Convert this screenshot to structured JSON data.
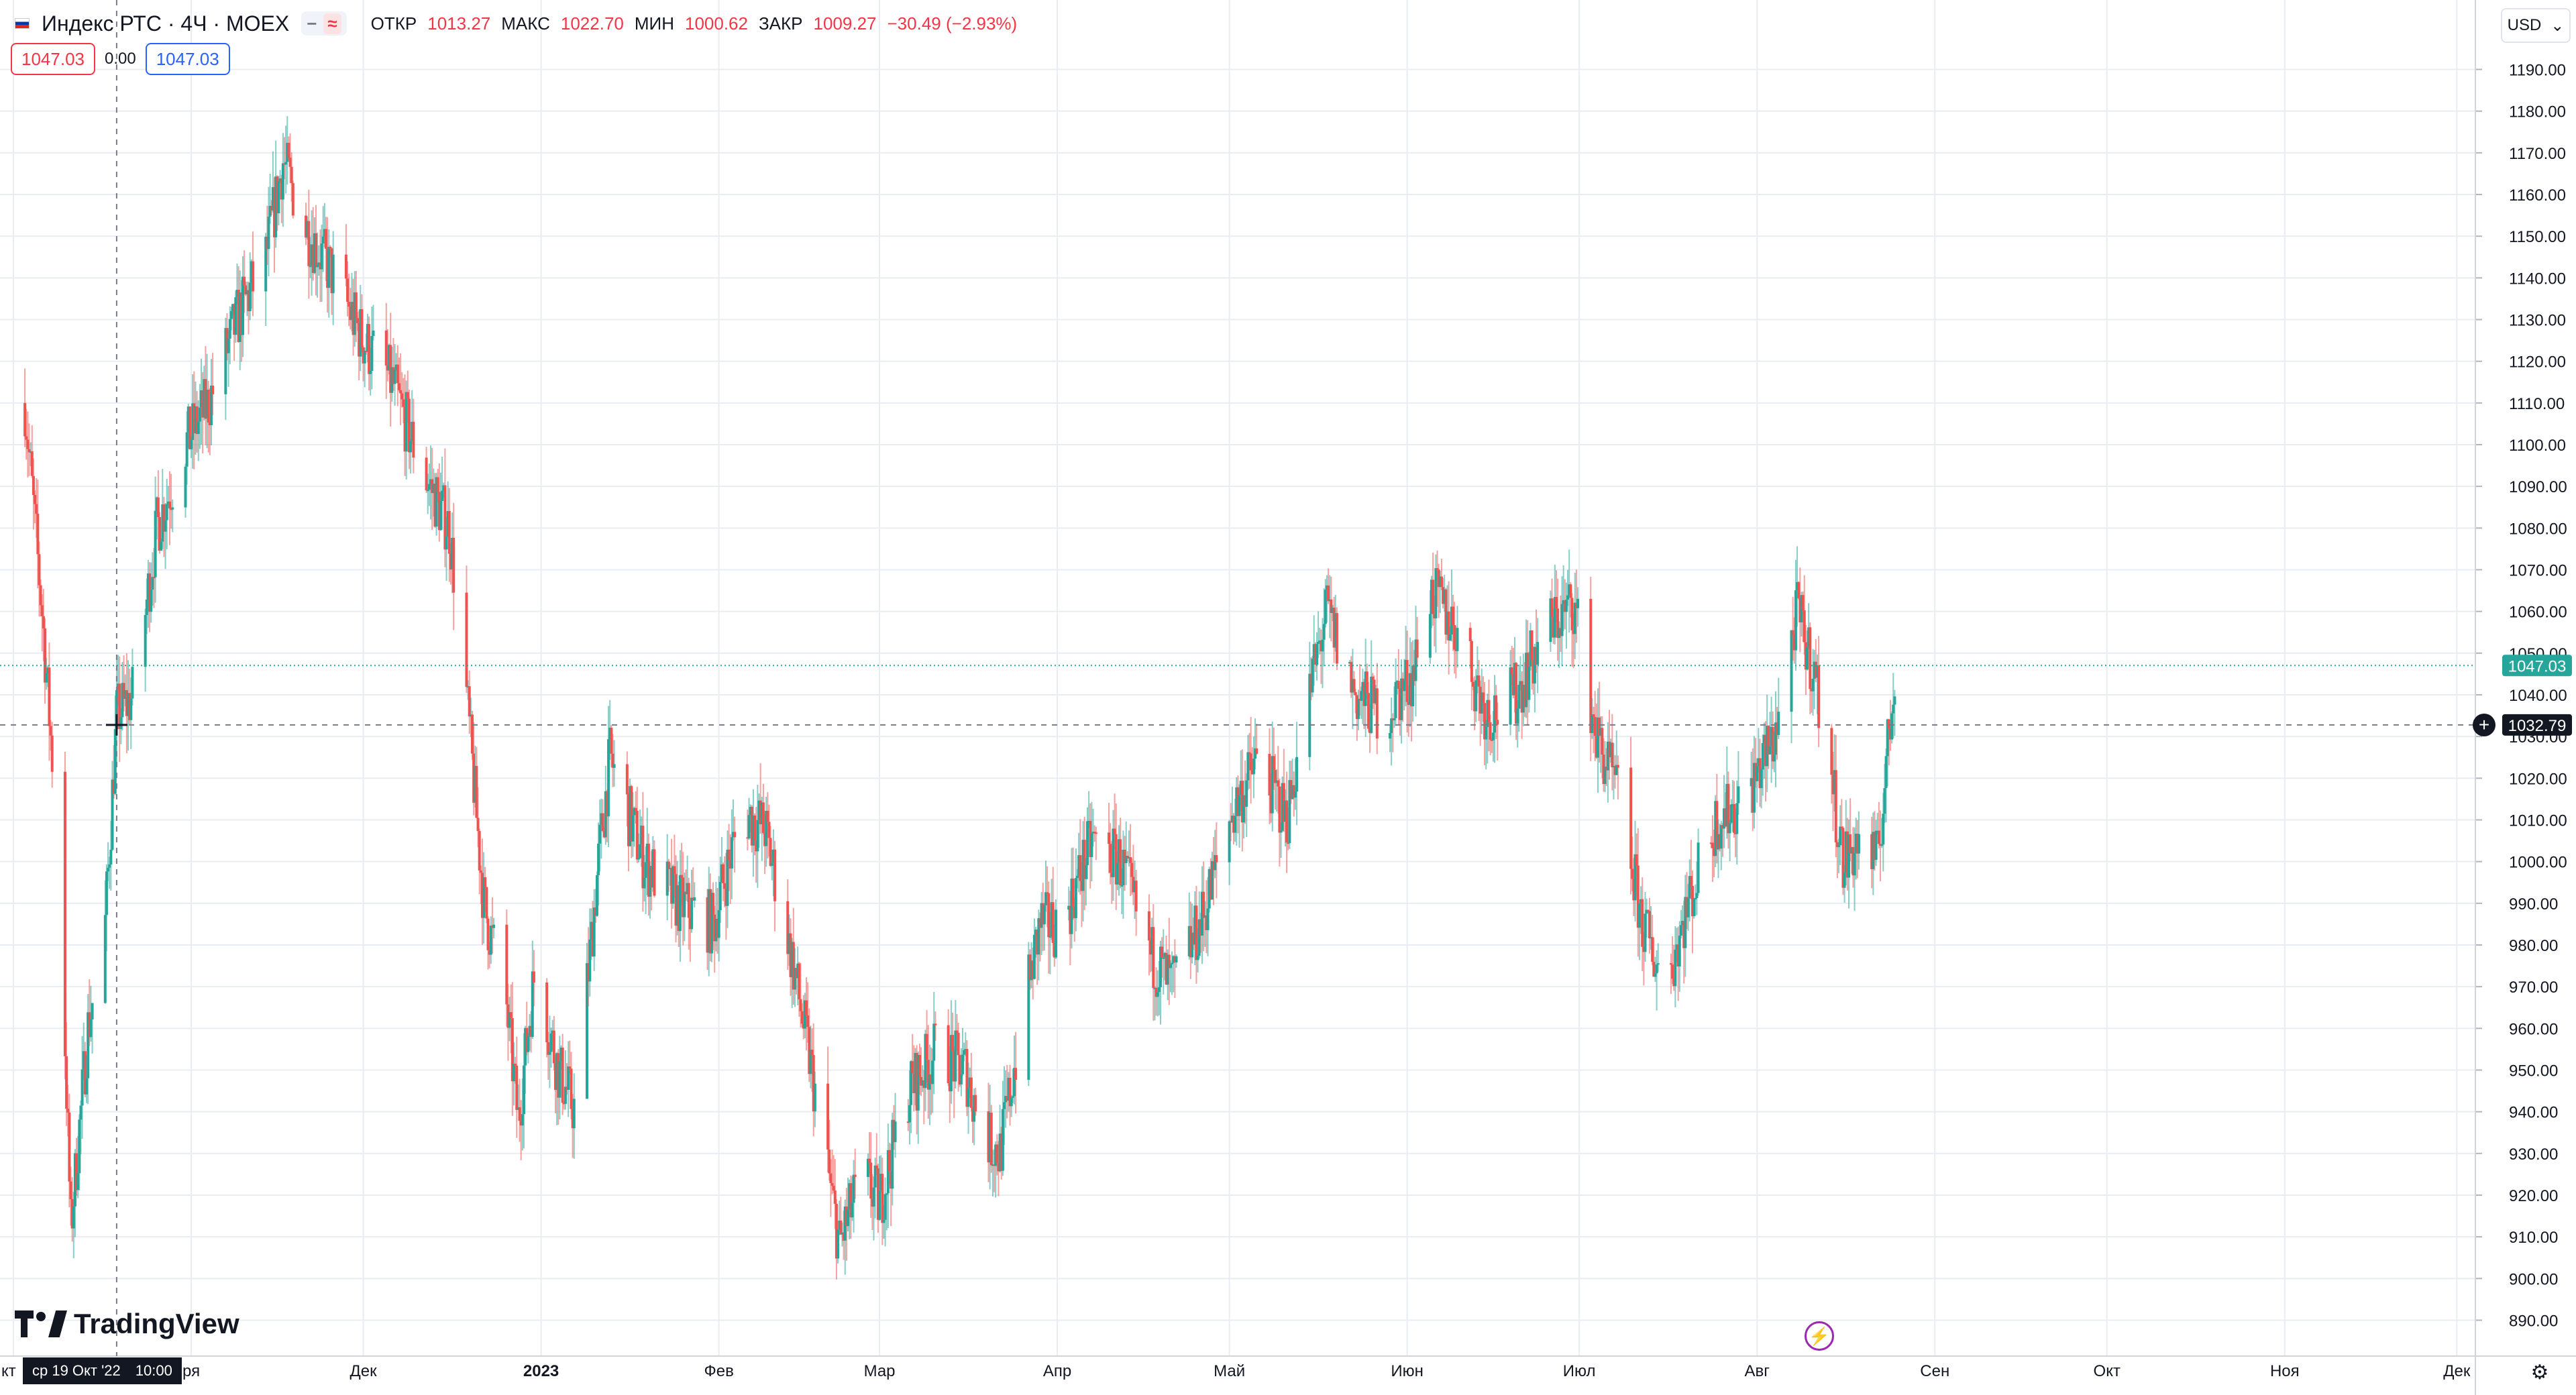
{
  "header": {
    "symbol_title": "Индекс РТС · 4Ч · MOEX",
    "chip_minus": "−",
    "chip_approx": "≈",
    "ohlc": {
      "open_label": "ОТКР",
      "open": "1013.27",
      "high_label": "МАКС",
      "high": "1022.70",
      "low_label": "МИН",
      "low": "1000.62",
      "close_label": "ЗАКР",
      "close": "1009.27",
      "change": "−30.49 (−2.93%)"
    }
  },
  "quote": {
    "sell": "1047.03",
    "spread": "0.00",
    "buy": "1047.03"
  },
  "currency": {
    "label": "USD",
    "chevron": "⌄"
  },
  "logo_text": "TradingView",
  "crosshair": {
    "time_label": "ср 19 Окт '22",
    "time_value": "10:00",
    "price_label": "1032.79"
  },
  "last_price_label": "1047.03",
  "colors": {
    "up": "#26a69a",
    "down": "#ef5350",
    "grid": "#e9edf3",
    "text": "#131722",
    "accent": "#2962ff",
    "last_line": "#26a69a"
  },
  "icons": {
    "settings": "gear-icon",
    "bolt": "lightning-icon",
    "plus": "plus-circle-icon",
    "flag": "russia-flag-icon"
  },
  "chart_data": {
    "type": "candlestick",
    "title": "Индекс РТС · 4Ч · MOEX",
    "ylim": [
      883,
      1197
    ],
    "y_ticks": [
      890,
      900,
      910,
      920,
      930,
      940,
      950,
      960,
      970,
      980,
      990,
      1000,
      1010,
      1020,
      1030,
      1040,
      1050,
      1060,
      1070,
      1080,
      1090,
      1100,
      1110,
      1120,
      1130,
      1140,
      1150,
      1160,
      1170,
      1180,
      1190
    ],
    "y_tick_labels": [
      "890.00",
      "900.00",
      "910.00",
      "920.00",
      "930.00",
      "940.00",
      "950.00",
      "960.00",
      "970.00",
      "980.00",
      "990.00",
      "1000.00",
      "1010.00",
      "1020.00",
      "1030.00",
      "1040.00",
      "1050.00",
      "1060.00",
      "1070.00",
      "1080.00",
      "1090.00",
      "1100.00",
      "1110.00",
      "1120.00",
      "1130.00",
      "1140.00",
      "1150.00",
      "1160.00",
      "1170.00",
      "1180.00",
      "1190.00"
    ],
    "x_labels": [
      "кт",
      "ря",
      "Дек",
      "2023",
      "Фев",
      "Мар",
      "Апр",
      "Май",
      "Июн",
      "Июл",
      "Авг",
      "Сен",
      "Окт",
      "Ноя",
      "Дек"
    ],
    "x_label_dates": [
      "2022-10-01",
      "2022-11-01",
      "2022-12-01",
      "2023-01-01",
      "2023-02-01",
      "2023-03-01",
      "2023-04-01",
      "2023-05-01",
      "2023-06-01",
      "2023-07-01",
      "2023-08-01",
      "2023-09-01",
      "2023-10-01",
      "2023-11-01",
      "2023-12-01"
    ],
    "last_price": 1047.03,
    "crosshair_price": 1032.79,
    "crosshair_date": "2022-10-19",
    "grid": true,
    "anchors": [
      [
        "2022-10-03",
        1110
      ],
      [
        "2022-10-06",
        1060
      ],
      [
        "2022-10-09",
        1000
      ],
      [
        "2022-10-11",
        912
      ],
      [
        "2022-10-14",
        960
      ],
      [
        "2022-10-17",
        985
      ],
      [
        "2022-10-19",
        1035
      ],
      [
        "2022-10-22",
        1040
      ],
      [
        "2022-10-26",
        1080
      ],
      [
        "2022-10-31",
        1100
      ],
      [
        "2022-11-04",
        1110
      ],
      [
        "2022-11-09",
        1130
      ],
      [
        "2022-11-14",
        1145
      ],
      [
        "2022-11-17",
        1168
      ],
      [
        "2022-11-21",
        1152
      ],
      [
        "2022-11-26",
        1140
      ],
      [
        "2022-12-01",
        1125
      ],
      [
        "2022-12-06",
        1115
      ],
      [
        "2022-12-11",
        1095
      ],
      [
        "2022-12-16",
        1080
      ],
      [
        "2022-12-19",
        1040
      ],
      [
        "2022-12-22",
        990
      ],
      [
        "2022-12-26",
        965
      ],
      [
        "2022-12-28",
        938
      ],
      [
        "2022-12-31",
        975
      ],
      [
        "2023-01-04",
        950
      ],
      [
        "2023-01-07",
        940
      ],
      [
        "2023-01-11",
        1000
      ],
      [
        "2023-01-13",
        1025
      ],
      [
        "2023-01-19",
        1000
      ],
      [
        "2023-01-25",
        990
      ],
      [
        "2023-01-31",
        985
      ],
      [
        "2023-02-05",
        1012
      ],
      [
        "2023-02-09",
        1008
      ],
      [
        "2023-02-14",
        975
      ],
      [
        "2023-02-19",
        935
      ],
      [
        "2023-02-22",
        908
      ],
      [
        "2023-02-26",
        925
      ],
      [
        "2023-03-01",
        918
      ],
      [
        "2023-03-06",
        945
      ],
      [
        "2023-03-11",
        955
      ],
      [
        "2023-03-16",
        950
      ],
      [
        "2023-03-19",
        935
      ],
      [
        "2023-03-22",
        930
      ],
      [
        "2023-03-25",
        955
      ],
      [
        "2023-03-29",
        985
      ],
      [
        "2023-04-02",
        985
      ],
      [
        "2023-04-07",
        1005
      ],
      [
        "2023-04-12",
        1000
      ],
      [
        "2023-04-17",
        978
      ],
      [
        "2023-04-21",
        970
      ],
      [
        "2023-04-26",
        985
      ],
      [
        "2023-05-01",
        1010
      ],
      [
        "2023-05-06",
        1025
      ],
      [
        "2023-05-11",
        1010
      ],
      [
        "2023-05-14",
        1035
      ],
      [
        "2023-05-18",
        1060
      ],
      [
        "2023-05-23",
        1040
      ],
      [
        "2023-05-28",
        1035
      ],
      [
        "2023-06-02",
        1045
      ],
      [
        "2023-06-05",
        1065
      ],
      [
        "2023-06-10",
        1055
      ],
      [
        "2023-06-15",
        1035
      ],
      [
        "2023-06-20",
        1040
      ],
      [
        "2023-06-25",
        1055
      ],
      [
        "2023-06-30",
        1062
      ],
      [
        "2023-07-04",
        1030
      ],
      [
        "2023-07-08",
        1015
      ],
      [
        "2023-07-12",
        985
      ],
      [
        "2023-07-16",
        970
      ],
      [
        "2023-07-20",
        990
      ],
      [
        "2023-07-25",
        1010
      ],
      [
        "2023-07-30",
        1015
      ],
      [
        "2023-08-04",
        1030
      ],
      [
        "2023-08-08",
        1060
      ],
      [
        "2023-08-11",
        1045
      ],
      [
        "2023-08-14",
        1020
      ],
      [
        "2023-08-16",
        1000
      ],
      [
        "2023-08-19",
        1005
      ],
      [
        "2023-08-22",
        1000
      ],
      [
        "2023-08-25",
        1045
      ]
    ]
  }
}
